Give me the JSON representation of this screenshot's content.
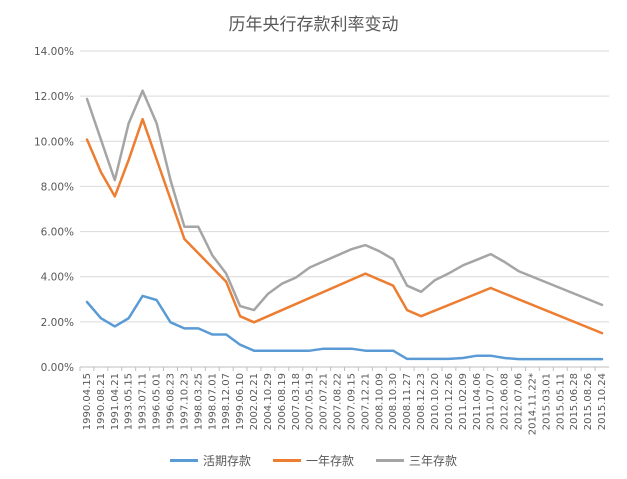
{
  "chart_data": {
    "type": "line",
    "title": "历年央行存款利率变动",
    "xlabel": "",
    "ylabel": "",
    "ylim": [
      0,
      14
    ],
    "y_unit": "%",
    "yticks": [
      "0.00%",
      "2.00%",
      "4.00%",
      "6.00%",
      "8.00%",
      "10.00%",
      "12.00%",
      "14.00%"
    ],
    "grid": true,
    "legend_position": "bottom",
    "categories": [
      "1990.04.15",
      "1990.08.21",
      "1991.04.21",
      "1993.05.15",
      "1993.07.11",
      "1996.05.01",
      "1996.08.23",
      "1997.10.23",
      "1998.03.25",
      "1998.07.01",
      "1998.12.07",
      "1999.06.10",
      "2002.02.21",
      "2004.10.29",
      "2006.08.19",
      "2007.03.18",
      "2007.05.19",
      "2007.07.21",
      "2007.08.22",
      "2007.09.15",
      "2007.12.21",
      "2008.10.09",
      "2008.10.30",
      "2008.11.27",
      "2008.12.23",
      "2010.10.20",
      "2010.12.26",
      "2011.02.09",
      "2011.04.06",
      "2011.07.07",
      "2012.06.08",
      "2012.07.06",
      "2014.11.22*",
      "2015.03.01",
      "2015.05.11",
      "2015.06.28",
      "2015.08.26",
      "2015.10.24"
    ],
    "series": [
      {
        "name": "活期存款",
        "color": "#5b9bd5",
        "values": [
          2.88,
          2.16,
          1.8,
          2.16,
          3.15,
          2.97,
          1.98,
          1.71,
          1.71,
          1.44,
          1.44,
          0.99,
          0.72,
          0.72,
          0.72,
          0.72,
          0.72,
          0.81,
          0.81,
          0.81,
          0.72,
          0.72,
          0.72,
          0.36,
          0.36,
          0.36,
          0.36,
          0.4,
          0.5,
          0.5,
          0.4,
          0.35,
          0.35,
          0.35,
          0.35,
          0.35,
          0.35,
          0.35
        ]
      },
      {
        "name": "一年存款",
        "color": "#ed7d31",
        "values": [
          10.08,
          8.64,
          7.56,
          9.18,
          10.98,
          null,
          null,
          5.67,
          null,
          null,
          3.78,
          2.25,
          1.98,
          null,
          null,
          null,
          null,
          null,
          null,
          null,
          4.14,
          null,
          3.6,
          2.52,
          2.25,
          null,
          null,
          null,
          null,
          3.5,
          null,
          null,
          null,
          null,
          null,
          null,
          null,
          1.5
        ]
      },
      {
        "name": "三年存款",
        "color": "#a5a5a5",
        "values": [
          11.88,
          null,
          8.28,
          10.8,
          12.24,
          10.8,
          8.28,
          6.21,
          6.21,
          4.95,
          4.14,
          2.7,
          2.52,
          3.24,
          3.69,
          3.96,
          4.41,
          4.68,
          4.95,
          5.22,
          5.4,
          5.13,
          4.77,
          3.6,
          3.33,
          3.85,
          4.15,
          4.5,
          4.75,
          5.0,
          4.65,
          4.25,
          null,
          null,
          null,
          null,
          null,
          2.75
        ]
      }
    ]
  }
}
